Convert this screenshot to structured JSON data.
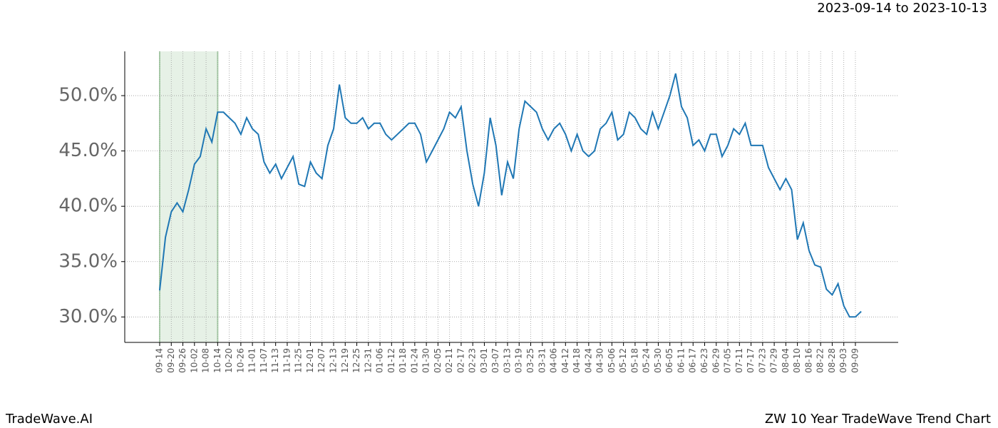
{
  "chart_data": {
    "type": "line",
    "title": "2023-09-14 to 2023-10-13",
    "footer_left": "TradeWave.AI",
    "footer_right": "ZW 10 Year TradeWave Trend Chart",
    "categories": [
      "09-14",
      null,
      "09-20",
      null,
      "09-26",
      null,
      "10-02",
      null,
      "10-08",
      null,
      "10-14",
      null,
      "10-20",
      null,
      "10-26",
      null,
      "11-01",
      null,
      "11-07",
      null,
      "11-13",
      null,
      "11-19",
      null,
      "11-25",
      null,
      "12-01",
      null,
      "12-07",
      null,
      "12-13",
      null,
      "12-19",
      null,
      "12-25",
      null,
      "12-31",
      null,
      "01-06",
      null,
      "01-12",
      null,
      "01-18",
      null,
      "01-24",
      null,
      "01-30",
      null,
      "02-05",
      null,
      "02-11",
      null,
      "02-17",
      null,
      "02-23",
      null,
      "03-01",
      null,
      "03-07",
      null,
      "03-13",
      null,
      "03-19",
      null,
      "03-25",
      null,
      "03-31",
      null,
      "04-06",
      null,
      "04-12",
      null,
      "04-18",
      null,
      "04-24",
      null,
      "04-30",
      null,
      "05-06",
      null,
      "05-12",
      null,
      "05-18",
      null,
      "05-24",
      null,
      "05-30",
      null,
      "06-05",
      null,
      "06-11",
      null,
      "06-17",
      null,
      "06-23",
      null,
      "06-29",
      null,
      "07-05",
      null,
      "07-11",
      null,
      "07-17",
      null,
      "07-23",
      null,
      "07-29",
      null,
      "08-04",
      null,
      "08-10",
      null,
      "08-16",
      null,
      "08-22",
      null,
      "08-28",
      null,
      "09-03",
      null,
      "09-09",
      null
    ],
    "series": [
      {
        "color": "#1f77b4",
        "values": [
          32.4,
          37.2,
          39.5,
          40.3,
          39.5,
          41.5,
          43.8,
          44.5,
          47.0,
          45.8,
          48.5,
          48.5,
          48.0,
          47.5,
          46.5,
          48.0,
          47.0,
          46.5,
          44.0,
          43.0,
          43.8,
          42.5,
          43.5,
          44.5,
          42.0,
          41.8,
          44.0,
          43.0,
          42.5,
          45.5,
          47.0,
          51.0,
          48.0,
          47.5,
          47.5,
          48.0,
          47.0,
          47.5,
          47.5,
          46.5,
          46.0,
          46.5,
          47.0,
          47.5,
          47.5,
          46.5,
          44.0,
          45.0,
          46.0,
          47.0,
          48.5,
          48.0,
          49.0,
          45.0,
          42.0,
          40.0,
          43.0,
          48.0,
          45.5,
          41.0,
          44.0,
          42.5,
          47.0,
          49.5,
          49.0,
          48.5,
          47.0,
          46.0,
          47.0,
          47.5,
          46.5,
          45.0,
          46.5,
          45.0,
          44.5,
          45.0,
          47.0,
          47.5,
          48.5,
          46.0,
          46.5,
          48.5,
          48.0,
          47.0,
          46.5,
          48.5,
          47.0,
          48.5,
          50.0,
          52.0,
          49.0,
          48.0,
          45.5,
          46.0,
          45.0,
          46.5,
          46.5,
          44.5,
          45.5,
          47.0,
          46.5,
          47.5,
          45.5,
          45.5,
          45.5,
          43.5,
          42.5,
          41.5,
          42.5,
          41.5,
          37.0,
          38.5,
          36.0,
          34.7,
          34.5,
          32.5,
          32.0,
          33.0,
          31.0,
          30.0,
          30.0,
          30.5
        ]
      }
    ],
    "highlight": [
      0,
      10
    ],
    "ylim": [
      27.7,
      54.0
    ],
    "yticks": [
      {
        "value": 30,
        "label": "30.0%"
      },
      {
        "value": 35,
        "label": "35.0%"
      },
      {
        "value": 40,
        "label": "40.0%"
      },
      {
        "value": 45,
        "label": "45.0%"
      },
      {
        "value": 50,
        "label": "50.0%"
      }
    ],
    "grid": true
  }
}
